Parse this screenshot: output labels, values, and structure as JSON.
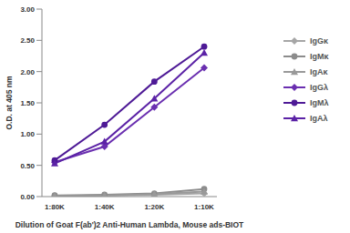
{
  "chart_data": {
    "type": "line",
    "x_label": "Dilution of Goat F(ab')2 Anti-Human Lambda, Mouse ads-BIOT",
    "y_label": "O.D. at 405 nm",
    "categories": [
      "1:80K",
      "1:40K",
      "1:20K",
      "1:10K"
    ],
    "series": [
      {
        "name": "IgGκ",
        "color": "#a6a6a6",
        "marker": "diamond",
        "values": [
          0.01,
          0.02,
          0.03,
          0.05
        ]
      },
      {
        "name": "IgMκ",
        "color": "#8c8c8c",
        "marker": "circle",
        "values": [
          0.02,
          0.03,
          0.05,
          0.12
        ]
      },
      {
        "name": "IgAκ",
        "color": "#999999",
        "marker": "triangle",
        "values": [
          0.01,
          0.02,
          0.04,
          0.08
        ]
      },
      {
        "name": "IgGλ",
        "color": "#6a2fb0",
        "marker": "diamond",
        "values": [
          0.55,
          0.8,
          1.43,
          2.06
        ]
      },
      {
        "name": "IgMλ",
        "color": "#4e1a96",
        "marker": "circle",
        "values": [
          0.58,
          1.15,
          1.84,
          2.4
        ]
      },
      {
        "name": "IgAλ",
        "color": "#5b22a6",
        "marker": "triangle",
        "values": [
          0.53,
          0.88,
          1.57,
          2.3
        ]
      }
    ],
    "ylim": [
      0,
      3
    ],
    "yticks": [
      {
        "value": 0,
        "label": "0.00"
      },
      {
        "value": 0.5,
        "label": "0.50"
      },
      {
        "value": 1,
        "label": "1.00"
      },
      {
        "value": 1.5,
        "label": "1.50"
      },
      {
        "value": 2,
        "label": "2.00"
      },
      {
        "value": 2.5,
        "label": "2.50"
      },
      {
        "value": 3,
        "label": "3.00"
      }
    ],
    "grid": false,
    "legend": "right"
  }
}
